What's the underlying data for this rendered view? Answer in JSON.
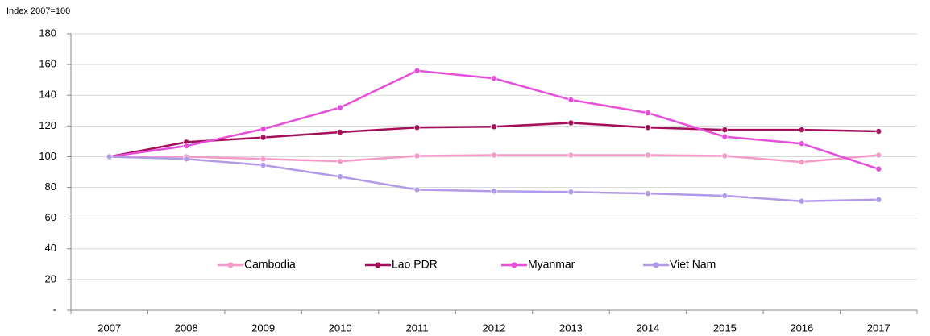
{
  "chart_data": {
    "type": "line",
    "y_label": "Index 2007=100",
    "categories": [
      "2007",
      "2008",
      "2009",
      "2010",
      "2011",
      "2012",
      "2013",
      "2014",
      "2015",
      "2016",
      "2017"
    ],
    "series": [
      {
        "name": "Cambodia",
        "color": "#f49ac8",
        "values": [
          100,
          100,
          98.5,
          97,
          100.5,
          101,
          101,
          101,
          100.5,
          96.5,
          101
        ]
      },
      {
        "name": "Lao PDR",
        "color": "#a50f5a",
        "values": [
          100,
          109.5,
          112.5,
          116,
          119,
          119.5,
          122,
          119,
          117.5,
          117.5,
          116.5
        ]
      },
      {
        "name": "Myanmar",
        "color": "#e64fd8",
        "values": [
          100,
          107,
          118,
          132,
          156,
          151,
          137,
          128.5,
          113,
          108.5,
          92
        ]
      },
      {
        "name": "Viet Nam",
        "color": "#b39ae6",
        "values": [
          100,
          98.5,
          94.5,
          87,
          78.5,
          77.5,
          77,
          76,
          74.5,
          71,
          72
        ]
      }
    ],
    "ylim": [
      0,
      180
    ],
    "yticks": [
      {
        "value": 0,
        "label": "-"
      },
      20,
      40,
      60,
      80,
      100,
      120,
      140,
      160,
      180
    ],
    "grid": true,
    "legend": "inside-bottom"
  }
}
